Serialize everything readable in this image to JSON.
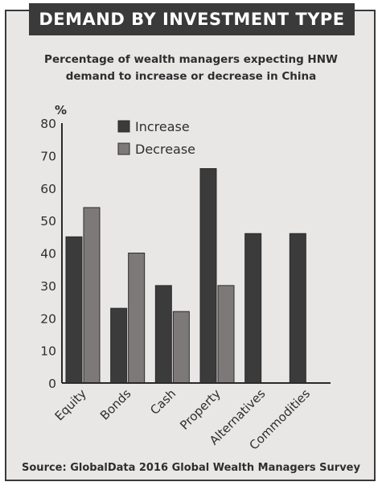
{
  "header": {
    "title": "DEMAND BY INVESTMENT TYPE",
    "subtitle_line1": "Percentage of wealth managers expecting HNW",
    "subtitle_line2": "demand to increase or decrease in China"
  },
  "footer": {
    "source": "Source: GlobalData 2016 Global Wealth Managers Survey"
  },
  "colors": {
    "increase": "#3b3b3b",
    "decrease": "#7d7979",
    "background": "#e9e6e6",
    "title_bar": "#3a3a3a"
  },
  "chart_data": {
    "type": "bar",
    "title": "Percentage of wealth managers expecting HNW demand to increase or decrease in China",
    "ylabel": "%",
    "xlabel": "",
    "ylim": [
      0,
      80
    ],
    "yticks": [
      "0",
      "10",
      "20",
      "30",
      "40",
      "50",
      "60",
      "70",
      "80"
    ],
    "categories": [
      "Equity",
      "Bonds",
      "Cash",
      "Property",
      "Alternatives",
      "Commodities"
    ],
    "series": [
      {
        "name": "Increase",
        "values": [
          45,
          23,
          30,
          66,
          46,
          46
        ]
      },
      {
        "name": "Decrease",
        "values": [
          54,
          40,
          22,
          30,
          0,
          0
        ]
      }
    ],
    "legend_position": "top-left",
    "grid": false
  }
}
